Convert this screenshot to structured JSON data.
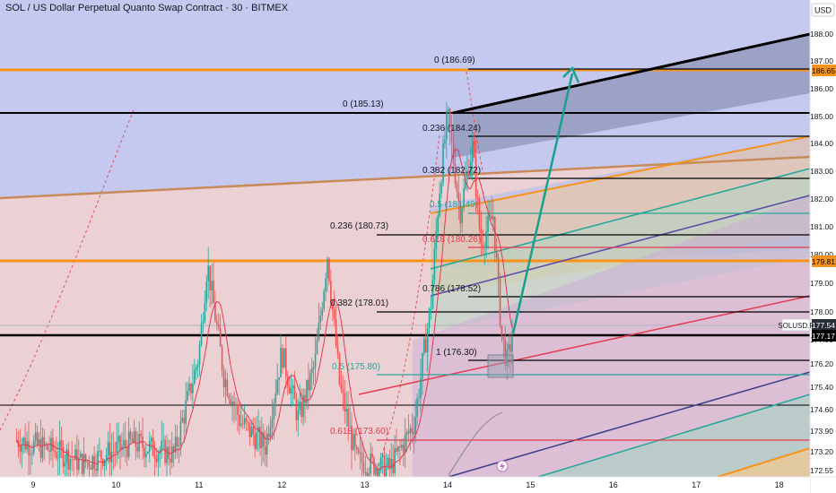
{
  "header": {
    "title": "SOL / US Dollar Perpetual Quanto Swap Contract · 30 · BITMEX"
  },
  "axis": {
    "currency": "USD",
    "y_ticks": [
      "188.00",
      "187.00",
      "186.00",
      "185.00",
      "184.00",
      "183.00",
      "182.00",
      "181.00",
      "180.00",
      "179.00",
      "178.00",
      "177.00",
      "176.20",
      "175.40",
      "174.60",
      "173.90",
      "173.20",
      "172.55"
    ],
    "x_ticks": [
      "9",
      "10",
      "11",
      "12",
      "13",
      "14",
      "15",
      "16",
      "17",
      "18"
    ],
    "price_tags": {
      "top_orange": "186.65",
      "mid_orange": "179.81",
      "symbol": "SOLUSD.P",
      "last": "177.54",
      "black": "177.17"
    }
  },
  "fib_labels": {
    "a_0": "0 (185.13)",
    "a_0236": "0.236 (180.73)",
    "a_0382": "0.382 (178.01)",
    "a_05": "0.5 (175.80)",
    "a_0618": "0.618 (173.60)",
    "b_0": "0 (186.69)",
    "b_0236": "0.236 (184.24)",
    "b_0382": "0.382 (182.72)",
    "b_05": "0.5 (181.49)",
    "b_0618": "0.618 (180.26)",
    "b_0786": "0.786 (178.52)",
    "b_1": "1 (176.30)"
  },
  "colors": {
    "orange": "#f7931a",
    "black": "#000000",
    "teal": "#26a69a",
    "red": "#e53950",
    "upper_zone": "#c5c9ef",
    "lower_zone": "#ebd1d3"
  },
  "icons": [
    "lightning-icon"
  ],
  "chart_data": {
    "type": "candlestick",
    "symbol": "SOLUSD.P",
    "interval": "30",
    "exchange": "BITMEX",
    "x_ticks": [
      "9",
      "10",
      "11",
      "12",
      "13",
      "14",
      "15",
      "16",
      "17",
      "18"
    ],
    "ylim": [
      172.3,
      188.6
    ],
    "last_price": 177.54,
    "levels": {
      "orange": [
        186.65,
        179.81
      ],
      "black": [
        185.13,
        177.17,
        174.6
      ]
    },
    "fib_a": {
      "0": 185.13,
      "0.236": 180.73,
      "0.382": 178.01,
      "0.5": 175.8,
      "0.618": 173.6
    },
    "fib_b": {
      "0": 186.69,
      "0.236": 184.24,
      "0.382": 182.72,
      "0.5": 181.49,
      "0.618": 180.26,
      "0.786": 178.52,
      "1": 176.3
    },
    "price_path": [
      {
        "day": 8.8,
        "price": 173.6
      },
      {
        "day": 9.3,
        "price": 173.2
      },
      {
        "day": 9.6,
        "price": 172.8
      },
      {
        "day": 10.2,
        "price": 173.5
      },
      {
        "day": 10.7,
        "price": 173.1
      },
      {
        "day": 11.0,
        "price": 176.5
      },
      {
        "day": 11.1,
        "price": 179.7
      },
      {
        "day": 11.3,
        "price": 175.8
      },
      {
        "day": 11.5,
        "price": 174.2
      },
      {
        "day": 11.8,
        "price": 173.4
      },
      {
        "day": 12.0,
        "price": 176.6
      },
      {
        "day": 12.2,
        "price": 174.3
      },
      {
        "day": 12.4,
        "price": 176.2
      },
      {
        "day": 12.55,
        "price": 180.0
      },
      {
        "day": 12.7,
        "price": 175.4
      },
      {
        "day": 12.9,
        "price": 172.9
      },
      {
        "day": 13.3,
        "price": 172.6
      },
      {
        "day": 13.6,
        "price": 174.2
      },
      {
        "day": 13.8,
        "price": 178.3
      },
      {
        "day": 13.9,
        "price": 182.3
      },
      {
        "day": 14.0,
        "price": 185.1
      },
      {
        "day": 14.15,
        "price": 181.5
      },
      {
        "day": 14.3,
        "price": 183.9
      },
      {
        "day": 14.4,
        "price": 180.4
      },
      {
        "day": 14.55,
        "price": 181.4
      },
      {
        "day": 14.65,
        "price": 177.2
      },
      {
        "day": 14.72,
        "price": 176.2
      },
      {
        "day": 14.8,
        "price": 177.5
      }
    ]
  }
}
